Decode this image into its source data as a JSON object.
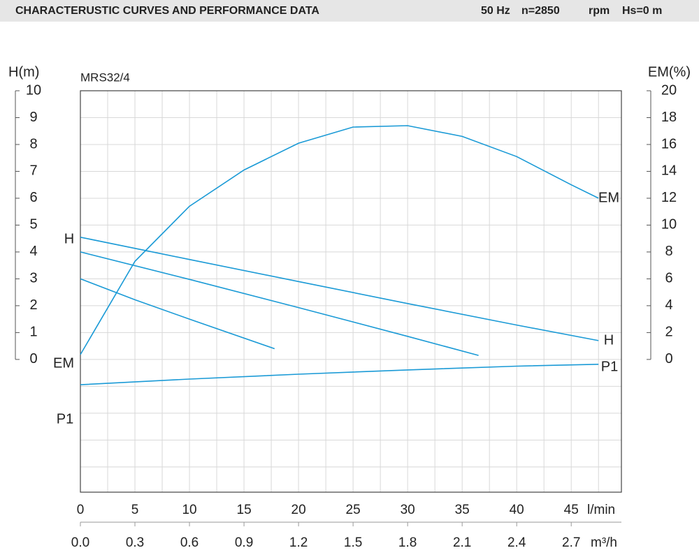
{
  "chart_data": {
    "type": "line",
    "header": {
      "title": "CHARACTERUSTIC CURVES AND PERFORMANCE DATA",
      "specs": [
        "50 Hz",
        "n=2850",
        "rpm",
        "Hs=0 m"
      ]
    },
    "model": "MRS32/4",
    "ylabel": "H(m)",
    "y2label": "EM(%)",
    "xlabel": "l/min",
    "x2label": "m³/h",
    "xlim": [
      0,
      49.6
    ],
    "x2lim": [
      0,
      2.976
    ],
    "xticks": [
      0,
      5,
      10,
      15,
      20,
      25,
      30,
      35,
      40,
      45
    ],
    "x2ticks": [
      {
        "value": 0,
        "label": "0.0"
      },
      0.3,
      0.6,
      0.9,
      1.2,
      1.5,
      1.8,
      2.1,
      2.4,
      2.7
    ],
    "ylim": [
      -4.94,
      10
    ],
    "yticks": [
      0,
      1,
      2,
      3,
      4,
      5,
      6,
      7,
      8,
      9,
      10
    ],
    "y2lim": [
      -9.88,
      20
    ],
    "y2ticks": [
      0,
      2,
      4,
      6,
      8,
      10,
      12,
      14,
      16,
      18,
      20
    ],
    "grid": true,
    "series": [
      {
        "name": "H",
        "color": "#1a9ad6",
        "x": [
          0,
          10,
          20,
          30,
          40,
          47.5
        ],
        "values": [
          4.55,
          3.72,
          2.9,
          2.08,
          1.28,
          0.7
        ]
      },
      {
        "name": "H",
        "color": "#1a9ad6",
        "x": [
          0,
          10,
          20,
          30,
          36.5
        ],
        "values": [
          4.0,
          2.98,
          1.93,
          0.86,
          0.15
        ]
      },
      {
        "name": "H",
        "color": "#1a9ad6",
        "x": [
          0,
          5,
          10,
          17.8
        ],
        "values": [
          3.0,
          2.22,
          1.5,
          0.4
        ]
      },
      {
        "name": "EM",
        "color": "#1a9ad6",
        "axis": "y2",
        "x": [
          0,
          5,
          10,
          15,
          20,
          25,
          30,
          35,
          40,
          45,
          47.5
        ],
        "values": [
          0.36,
          7.3,
          11.4,
          14.1,
          16.1,
          17.3,
          17.4,
          16.6,
          15.1,
          13.0,
          12.0
        ]
      },
      {
        "name": "P1",
        "color": "#1a9ad6",
        "x": [
          0,
          10,
          20,
          30,
          40,
          47.5
        ],
        "values": [
          -0.94,
          -0.73,
          -0.55,
          -0.39,
          -0.25,
          -0.18
        ]
      }
    ],
    "curve_labels": [
      "H",
      "EM",
      "P1",
      "EM",
      "H",
      "P1"
    ]
  }
}
